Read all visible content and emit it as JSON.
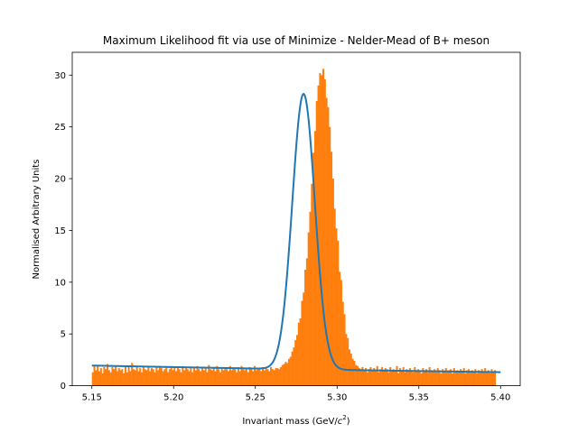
{
  "chart_data": {
    "type": "bar",
    "title": "Maximum Likelihood fit via use of Minimize - Nelder-Mead of B+ meson",
    "xlabel": "Invariant mass (GeV/",
    "xlabel_unit_base": "c",
    "xlabel_unit_exp": "2",
    "xlabel_close": ")",
    "ylabel": "Normalised Arbitrary Units",
    "xlim": [
      5.138,
      5.412
    ],
    "ylim": [
      0,
      32.2
    ],
    "xticks": [
      5.15,
      5.2,
      5.25,
      5.3,
      5.35,
      5.4
    ],
    "xtick_labels": [
      "5.15",
      "5.20",
      "5.25",
      "5.30",
      "5.35",
      "5.40"
    ],
    "yticks": [
      0,
      5,
      10,
      15,
      20,
      25,
      30
    ],
    "ytick_labels": [
      "0",
      "5",
      "10",
      "15",
      "20",
      "25",
      "30"
    ],
    "grid": false,
    "colors": {
      "histogram": "#ff7f0e",
      "fit": "#1f77b4",
      "axes": "#000000"
    },
    "histogram": {
      "range": [
        5.15,
        5.4
      ],
      "bin_width": 0.001,
      "values": [
        1.3,
        2.0,
        1.5,
        1.9,
        1.4,
        1.7,
        1.2,
        1.8,
        1.6,
        2.1,
        1.5,
        1.3,
        1.8,
        1.6,
        1.9,
        1.4,
        1.7,
        1.5,
        1.6,
        1.2,
        1.9,
        1.3,
        1.8,
        1.4,
        2.2,
        1.6,
        1.5,
        1.9,
        1.4,
        1.7,
        1.3,
        1.8,
        1.6,
        1.5,
        1.9,
        1.4,
        1.7,
        1.6,
        1.3,
        1.8,
        1.5,
        1.9,
        1.7,
        1.4,
        1.6,
        1.8,
        1.3,
        1.6,
        1.9,
        1.5,
        1.7,
        1.4,
        1.8,
        1.6,
        1.3,
        1.9,
        1.5,
        1.7,
        1.6,
        1.4,
        1.8,
        1.3,
        1.7,
        1.5,
        1.9,
        1.6,
        1.4,
        1.8,
        1.5,
        1.7,
        1.3,
        2.0,
        1.6,
        1.5,
        1.8,
        1.4,
        1.9,
        1.6,
        1.3,
        1.7,
        1.5,
        1.8,
        1.6,
        1.4,
        1.9,
        1.5,
        1.7,
        1.6,
        1.3,
        1.8,
        1.4,
        1.9,
        1.6,
        1.5,
        1.7,
        1.3,
        1.8,
        1.6,
        1.4,
        1.9,
        1.5,
        1.7,
        1.6,
        1.4,
        1.8,
        1.5,
        1.7,
        1.6,
        1.4,
        1.8,
        1.6,
        1.5,
        1.7,
        1.7,
        1.6,
        1.8,
        2.0,
        2.1,
        2.3,
        2.2,
        2.6,
        2.8,
        3.3,
        3.7,
        4.4,
        4.9,
        6.1,
        6.5,
        8.2,
        9.0,
        11.2,
        12.3,
        14.8,
        16.8,
        19.5,
        22.5,
        24.6,
        27.5,
        29.0,
        30.2,
        30.0,
        30.6,
        29.6,
        27.8,
        26.9,
        25.0,
        22.6,
        20.0,
        17.1,
        15.2,
        14.0,
        11.0,
        10.2,
        8.1,
        6.9,
        5.0,
        4.6,
        3.5,
        3.1,
        2.6,
        2.4,
        2.0,
        1.9,
        1.7,
        1.6,
        1.8,
        1.5,
        1.7,
        1.3,
        1.6,
        1.8,
        1.4,
        1.7,
        1.5,
        1.9,
        1.3,
        1.6,
        1.8,
        1.4,
        1.7,
        1.6,
        1.3,
        1.8,
        1.5,
        1.6,
        1.4,
        1.9,
        1.2,
        1.7,
        1.5,
        1.8,
        1.3,
        1.6,
        1.4,
        1.7,
        1.5,
        1.3,
        1.8,
        1.4,
        1.6,
        1.5,
        1.2,
        1.7,
        1.4,
        1.6,
        1.3,
        1.8,
        1.5,
        1.4,
        1.6,
        1.3,
        1.7,
        1.5,
        1.2,
        1.6,
        1.4,
        1.7,
        1.3,
        1.5,
        1.6,
        1.2,
        1.7,
        1.4,
        1.5,
        1.3,
        1.6,
        1.4,
        1.7,
        1.2,
        1.5,
        1.6,
        1.3,
        1.5,
        1.4,
        1.6,
        1.2,
        1.5,
        1.4,
        1.6,
        1.3,
        1.7,
        1.4,
        1.5,
        1.2,
        1.6,
        1.4,
        1.5
      ]
    },
    "fit": {
      "model": "gaussian_plus_exponential_background",
      "mean": 5.2795,
      "sigma": 0.0069,
      "amplitude": 26.6,
      "background_at_5_15": 1.95,
      "background_decay": 1.6
    }
  }
}
